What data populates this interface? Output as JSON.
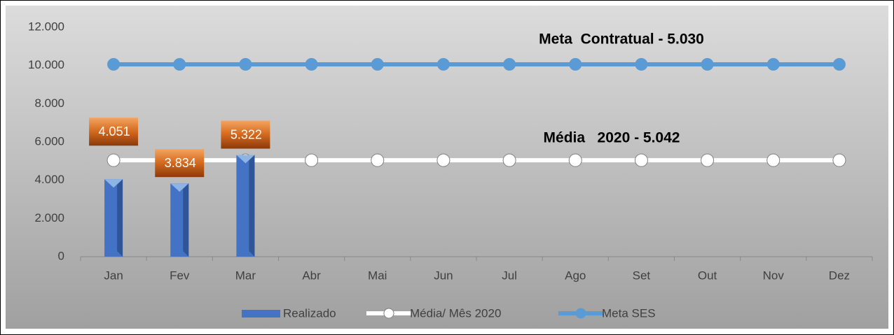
{
  "chart_data": {
    "type": "bar_line",
    "categories": [
      "Jan",
      "Fev",
      "Mar",
      "Abr",
      "Mai",
      "Jun",
      "Jul",
      "Ago",
      "Set",
      "Out",
      "Nov",
      "Dez"
    ],
    "series": [
      {
        "name": "Realizado",
        "type": "bar",
        "color": "#4472c4",
        "values": [
          4051,
          3834,
          5322,
          null,
          null,
          null,
          null,
          null,
          null,
          null,
          null,
          null
        ],
        "value_labels": [
          "4.051",
          "3.834",
          "5.322",
          null,
          null,
          null,
          null,
          null,
          null,
          null,
          null,
          null
        ]
      },
      {
        "name": "Média/ Mês 2020",
        "type": "line",
        "color": "#ffffff",
        "values": [
          5042,
          5042,
          5042,
          5042,
          5042,
          5042,
          5042,
          5042,
          5042,
          5042,
          5042,
          5042
        ]
      },
      {
        "name": "Meta SES",
        "type": "line",
        "color": "#5b9bd5",
        "values": [
          10060,
          10060,
          10060,
          10060,
          10060,
          10060,
          10060,
          10060,
          10060,
          10060,
          10060,
          10060
        ]
      }
    ],
    "annotations": [
      "Meta  Contratual - 5.030",
      "Média   2020 - 5.042"
    ],
    "ylim": [
      0,
      12000
    ],
    "yticks": [
      0,
      {
        "value": 2000,
        "label": "2.000"
      },
      {
        "value": 4000,
        "label": "4.000"
      },
      {
        "value": 6000,
        "label": "6.000"
      },
      {
        "value": 8000,
        "label": "8.000"
      },
      {
        "value": 10000,
        "label": "10.000"
      },
      {
        "value": 12000,
        "label": "12.000"
      }
    ],
    "grid": false,
    "legend": "bottom"
  }
}
